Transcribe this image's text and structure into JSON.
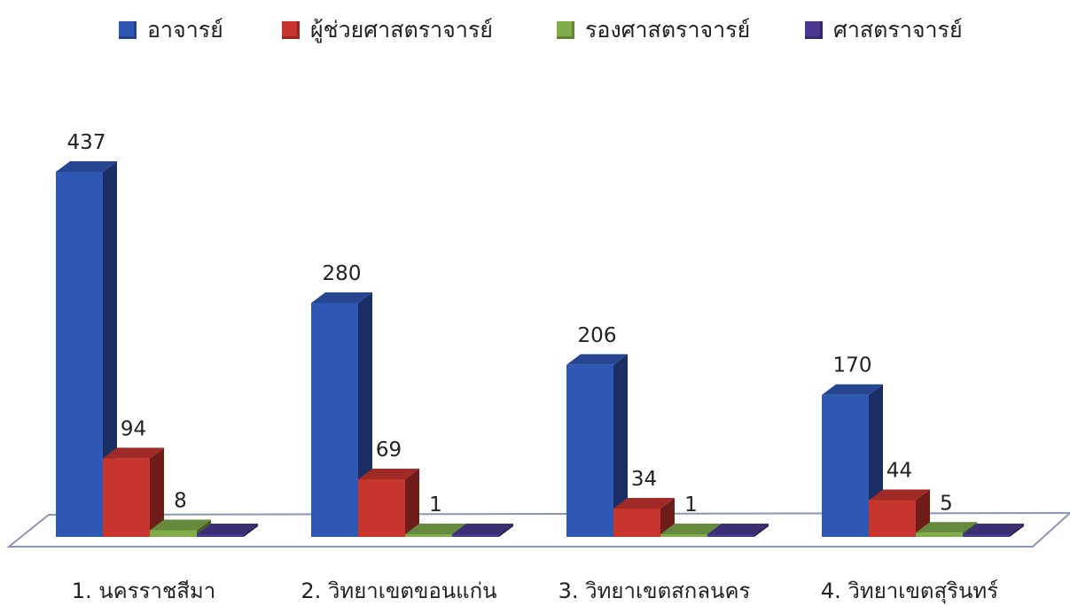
{
  "chart_data": {
    "type": "bar",
    "categories": [
      "1. นครราชสีมา",
      "2. วิทยาเขตขอนแก่น",
      "3. วิทยาเขตสกลนคร",
      "4. วิทยาเขตสุรินทร์"
    ],
    "series": [
      {
        "name": "อาจารย์",
        "values": [
          437,
          280,
          206,
          170
        ],
        "color": "#2f58b5"
      },
      {
        "name": "ผู้ช่วยศาสตราจารย์",
        "values": [
          94,
          69,
          34,
          44
        ],
        "color": "#c8352f"
      },
      {
        "name": "รองศาสตราจารย์",
        "values": [
          8,
          1,
          1,
          5
        ],
        "color": "#80ad4a"
      },
      {
        "name": "ศาสตราจารย์",
        "values": [
          0,
          0,
          0,
          0
        ],
        "color": "#4a3990"
      }
    ],
    "data_labels": [
      [
        "437",
        "280",
        "206",
        "170"
      ],
      [
        "94",
        "69",
        "34",
        "44"
      ],
      [
        "8",
        "1",
        "1",
        "5"
      ],
      [
        "",
        "",
        "",
        ""
      ]
    ],
    "legend_position": "top",
    "grid": false,
    "ylim": [
      0,
      437
    ],
    "style": "3d-column"
  }
}
